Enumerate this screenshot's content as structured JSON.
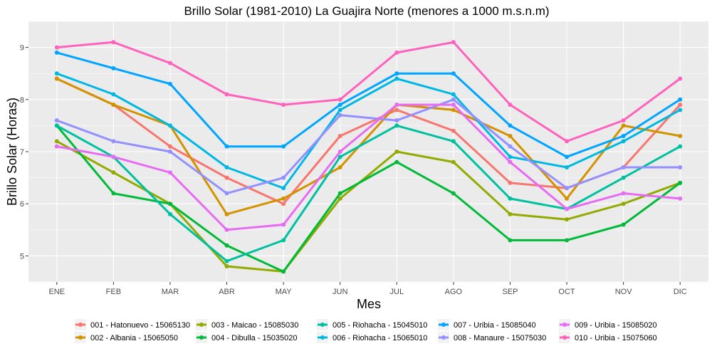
{
  "chart_data": {
    "type": "line",
    "title": "Brillo Solar (1981-2010) La Guajira Norte (menores a 1000 m.s.n.m)",
    "xlabel": "Mes",
    "ylabel": "Brillo Solar (Horas)",
    "ylim": [
      4.5,
      9.5
    ],
    "yticks": [
      5,
      6,
      7,
      8,
      9
    ],
    "grid": true,
    "legend_position": "bottom",
    "categories": [
      "ENE",
      "FEB",
      "MAR",
      "ABR",
      "MAY",
      "JUN",
      "JUL",
      "AGO",
      "SEP",
      "OCT",
      "NOV",
      "DIC"
    ],
    "series": [
      {
        "name": "001 - Hatonuevo - 15065130",
        "color": "#F8766D",
        "values": [
          8.4,
          7.9,
          7.1,
          6.5,
          6.0,
          7.3,
          7.8,
          7.4,
          6.4,
          6.3,
          6.7,
          7.9
        ]
      },
      {
        "name": "002 - Albania - 15065050",
        "color": "#D39200",
        "values": [
          8.4,
          7.9,
          7.5,
          5.8,
          6.1,
          6.7,
          7.9,
          7.8,
          7.3,
          6.1,
          7.5,
          7.3
        ]
      },
      {
        "name": "003 - Maicao - 15085030",
        "color": "#93AA00",
        "values": [
          7.2,
          6.6,
          6.0,
          4.8,
          4.7,
          6.1,
          7.0,
          6.8,
          5.8,
          5.7,
          6.0,
          6.4
        ]
      },
      {
        "name": "004 - Dibulla - 15035020",
        "color": "#00BA38",
        "values": [
          7.5,
          6.2,
          6.0,
          5.2,
          4.7,
          6.2,
          6.8,
          6.2,
          5.3,
          5.3,
          5.6,
          6.4
        ]
      },
      {
        "name": "005 - Riohacha - 15045010",
        "color": "#00C19F",
        "values": [
          7.5,
          6.9,
          5.8,
          4.9,
          5.3,
          6.9,
          7.5,
          7.2,
          6.1,
          5.9,
          6.5,
          7.1
        ]
      },
      {
        "name": "006 - Riohacha - 15065010",
        "color": "#00B9E3",
        "values": [
          8.5,
          8.1,
          7.5,
          6.7,
          6.3,
          7.8,
          8.4,
          8.1,
          6.9,
          6.7,
          7.2,
          7.8
        ]
      },
      {
        "name": "007 - Uribia - 15085040",
        "color": "#00A5FF",
        "values": [
          8.9,
          8.6,
          8.3,
          7.1,
          7.1,
          7.9,
          8.5,
          8.5,
          7.5,
          6.9,
          7.3,
          8.0
        ]
      },
      {
        "name": "008 - Manaure - 15075030",
        "color": "#9590FF",
        "values": [
          7.6,
          7.2,
          7.0,
          6.2,
          6.5,
          7.7,
          7.6,
          8.0,
          7.1,
          6.3,
          6.7,
          6.7
        ]
      },
      {
        "name": "009 - Uribia - 15085020",
        "color": "#E76BF3",
        "values": [
          7.1,
          6.9,
          6.6,
          5.5,
          5.6,
          7.0,
          7.9,
          7.9,
          6.8,
          5.9,
          6.2,
          6.1
        ]
      },
      {
        "name": "010 - Uribia - 15075060",
        "color": "#FF62BC",
        "values": [
          9.0,
          9.1,
          8.7,
          8.1,
          7.9,
          8.0,
          8.9,
          9.1,
          7.9,
          7.2,
          7.6,
          8.4
        ]
      }
    ]
  }
}
